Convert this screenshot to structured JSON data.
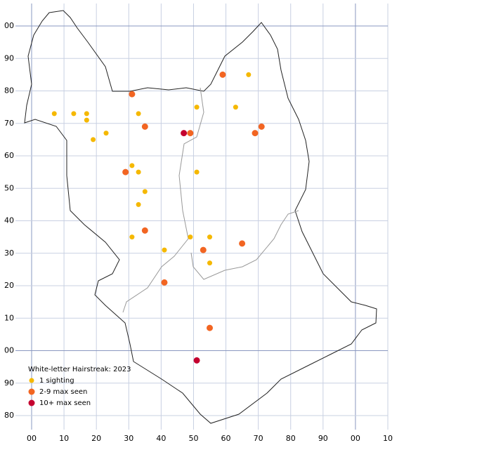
{
  "chart_data": {
    "type": "scatter",
    "legend_title": "White-letter Hairstreak:  2023",
    "xlim": [
      0,
      110
    ],
    "ylim": [
      -20,
      100
    ],
    "xticks": [
      {
        "value": 0,
        "label": "00"
      },
      10,
      20,
      30,
      40,
      50,
      60,
      70,
      80,
      90,
      {
        "value": 100,
        "label": "00"
      },
      {
        "value": 110,
        "label": "10"
      }
    ],
    "yticks": [
      {
        "value": 100,
        "label": "00"
      },
      90,
      80,
      70,
      60,
      50,
      40,
      30,
      20,
      10,
      {
        "value": 0,
        "label": "00"
      },
      {
        "value": -10,
        "label": "90"
      },
      {
        "value": -20,
        "label": "80"
      }
    ],
    "grid": true,
    "series": [
      {
        "name": "1 sighting",
        "color": "#f5b800",
        "x": [
          7,
          13,
          17,
          17,
          19,
          23,
          33,
          31,
          33,
          35,
          33,
          31,
          41,
          49,
          55,
          55,
          51,
          51,
          63,
          67
        ],
        "values": [
          73,
          73,
          73,
          71,
          65,
          67,
          73,
          57,
          55,
          49,
          45,
          35,
          31,
          35,
          35,
          27,
          55,
          75,
          75,
          85
        ]
      },
      {
        "name": "2-9 max seen",
        "color": "#f26522",
        "x": [
          31,
          35,
          29,
          35,
          41,
          53,
          49,
          59,
          69,
          71,
          65,
          55
        ],
        "values": [
          79,
          69,
          55,
          37,
          21,
          31,
          67,
          85,
          67,
          69,
          33,
          7
        ]
      },
      {
        "name": "10+ max seen",
        "color": "#c4002f",
        "x": [
          47,
          51
        ],
        "values": [
          67,
          -3
        ]
      }
    ]
  }
}
